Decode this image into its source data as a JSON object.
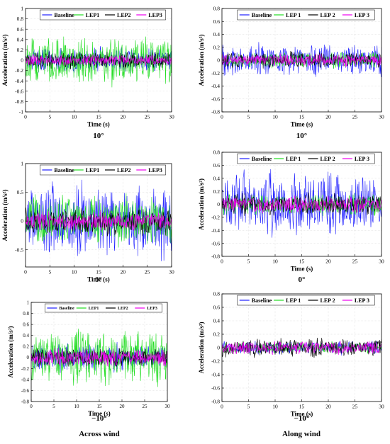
{
  "columns": {
    "left": "Across wind",
    "right": "Along wind"
  },
  "chart_data": [
    {
      "type": "line",
      "xlabel": "Time (s)",
      "ylabel": "Acceleration (m/s²)",
      "caption": "10°",
      "xlim": [
        0,
        30
      ],
      "ylim": [
        -1,
        1
      ],
      "xticks": [
        0,
        5,
        10,
        15,
        20,
        25,
        30
      ],
      "yticks": [
        -1,
        -0.8,
        -0.6,
        -0.4,
        -0.2,
        0,
        0.2,
        0.4,
        0.6,
        0.8,
        1
      ],
      "grid": true,
      "legend": "top",
      "series": [
        {
          "name": "Baseline",
          "color": "#1f1fff",
          "amplitude": 0.3
        },
        {
          "name": "LEP1",
          "color": "#22dd22",
          "amplitude": 0.55
        },
        {
          "name": "LEP2",
          "color": "#000000",
          "amplitude": 0.2
        },
        {
          "name": "LEP3",
          "color": "#ee00ee",
          "amplitude": 0.13
        }
      ]
    },
    {
      "type": "line",
      "xlabel": "Time (s)",
      "ylabel": "Acceleration (m/s²)",
      "caption": "10°",
      "xlim": [
        0,
        30
      ],
      "ylim": [
        -0.8,
        0.8
      ],
      "xticks": [
        0,
        5,
        10,
        15,
        20,
        25,
        30
      ],
      "yticks": [
        -0.8,
        -0.6,
        -0.4,
        -0.2,
        0,
        0.2,
        0.4,
        0.6,
        0.8
      ],
      "grid": true,
      "legend": "top",
      "series": [
        {
          "name": "Baseline",
          "color": "#1f1fff",
          "amplitude": 0.3
        },
        {
          "name": "LEP 1",
          "color": "#22dd22",
          "amplitude": 0.15
        },
        {
          "name": "LEP 2",
          "color": "#000000",
          "amplitude": 0.15
        },
        {
          "name": "LEP 3",
          "color": "#ee00ee",
          "amplitude": 0.12
        }
      ]
    },
    {
      "type": "line",
      "xlabel": "Time (s)",
      "ylabel": "Acceleration (m/s²)",
      "caption": "0°",
      "xlim": [
        0,
        30
      ],
      "ylim": [
        -0.8,
        1
      ],
      "xticks": [
        0,
        5,
        10,
        15,
        20,
        25,
        30
      ],
      "yticks": [
        -0.5,
        0,
        0.5,
        1
      ],
      "grid": true,
      "legend": "top",
      "series": [
        {
          "name": "Baseline",
          "color": "#1f1fff",
          "amplitude": 0.75
        },
        {
          "name": "LEP1",
          "color": "#22dd22",
          "amplitude": 0.55
        },
        {
          "name": "LEP2",
          "color": "#000000",
          "amplitude": 0.28
        },
        {
          "name": "LEP3",
          "color": "#ee00ee",
          "amplitude": 0.2
        }
      ]
    },
    {
      "type": "line",
      "xlabel": "Time (s)",
      "ylabel": "Acceleration (m/s²)",
      "caption": "0°",
      "xlim": [
        0,
        30
      ],
      "ylim": [
        -0.8,
        0.8
      ],
      "xticks": [
        0,
        5,
        10,
        15,
        20,
        25,
        30
      ],
      "yticks": [
        -0.8,
        -0.6,
        -0.4,
        -0.2,
        0,
        0.2,
        0.4,
        0.6,
        0.8
      ],
      "grid": true,
      "legend": "top",
      "series": [
        {
          "name": "Baseline",
          "color": "#1f1fff",
          "amplitude": 0.6
        },
        {
          "name": "LEP 1",
          "color": "#22dd22",
          "amplitude": 0.2
        },
        {
          "name": "LEP 2",
          "color": "#000000",
          "amplitude": 0.2
        },
        {
          "name": "LEP 3",
          "color": "#ee00ee",
          "amplitude": 0.15
        }
      ]
    },
    {
      "type": "line",
      "xlabel": "Time (s)",
      "ylabel": "Acceleration (m/s²)",
      "caption": "−10°",
      "xlim": [
        0,
        30
      ],
      "ylim": [
        -0.8,
        1
      ],
      "xticks": [
        0,
        5,
        10,
        15,
        20,
        25,
        30
      ],
      "yticks": [
        -0.8,
        -0.6,
        -0.4,
        -0.2,
        0,
        0.2,
        0.4,
        0.6,
        0.8,
        1
      ],
      "grid": true,
      "legend": "top",
      "series": [
        {
          "name": "Baseline",
          "color": "#1f1fff",
          "amplitude": 0.3
        },
        {
          "name": "LEP1",
          "color": "#22dd22",
          "amplitude": 0.6
        },
        {
          "name": "LEP2",
          "color": "#000000",
          "amplitude": 0.2
        },
        {
          "name": "LEP3",
          "color": "#ee00ee",
          "amplitude": 0.2
        }
      ]
    },
    {
      "type": "line",
      "xlabel": "Time (s)",
      "ylabel": "Acceleration (m/s²)",
      "caption": "−10°",
      "xlim": [
        0,
        30
      ],
      "ylim": [
        -0.8,
        0.8
      ],
      "xticks": [
        0,
        5,
        10,
        15,
        20,
        25,
        30
      ],
      "yticks": [
        -0.8,
        -0.6,
        -0.4,
        -0.2,
        0,
        0.2,
        0.4,
        0.6,
        0.8
      ],
      "grid": true,
      "legend": "top",
      "series": [
        {
          "name": "Baseline",
          "color": "#1f1fff",
          "amplitude": 0.12
        },
        {
          "name": "LEP 1",
          "color": "#22dd22",
          "amplitude": 0.1
        },
        {
          "name": "LEP 2",
          "color": "#000000",
          "amplitude": 0.17
        },
        {
          "name": "LEP 3",
          "color": "#ee00ee",
          "amplitude": 0.12
        }
      ]
    }
  ]
}
